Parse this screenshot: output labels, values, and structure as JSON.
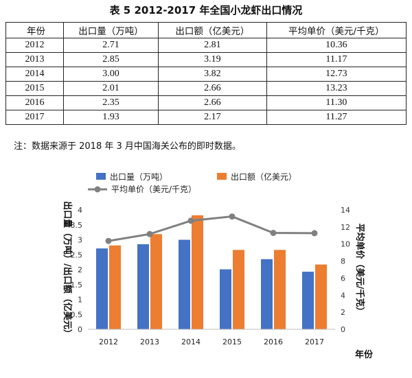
{
  "title": "表 5 2012-2017 年全国小龙虾出口情况",
  "table": {
    "headers": [
      "年份",
      "出口量（万吨）",
      "出口额（亿美元）",
      "平均单价（美元/千克）"
    ],
    "rows": [
      [
        "2012",
        "2.71",
        "2.81",
        "10.36"
      ],
      [
        "2013",
        "2.85",
        "3.19",
        "11.17"
      ],
      [
        "2014",
        "3.00",
        "3.82",
        "12.73"
      ],
      [
        "2015",
        "2.01",
        "2.66",
        "13.23"
      ],
      [
        "2016",
        "2.35",
        "2.66",
        "11.30"
      ],
      [
        "2017",
        "1.93",
        "2.17",
        "11.27"
      ]
    ]
  },
  "note": "注：数据来源于 2018 年 3 月中国海关公布的即时数据。",
  "chart_data": {
    "type": "bar",
    "categories": [
      "2012",
      "2013",
      "2014",
      "2015",
      "2016",
      "2017"
    ],
    "series": [
      {
        "name": "出口量（万吨）",
        "type": "bar",
        "axis": "left",
        "color": "#4472C4",
        "values": [
          2.71,
          2.85,
          3.0,
          2.01,
          2.35,
          1.93
        ]
      },
      {
        "name": "出口额（亿美元）",
        "type": "bar",
        "axis": "left",
        "color": "#ED7D31",
        "values": [
          2.81,
          3.19,
          3.82,
          2.66,
          2.66,
          2.17
        ]
      },
      {
        "name": "平均单价（美元/千克）",
        "type": "line",
        "axis": "right",
        "color": "#808080",
        "values": [
          10.36,
          11.17,
          12.73,
          13.23,
          11.3,
          11.27
        ]
      }
    ],
    "xlabel": "年份",
    "ylabel": "出口量（万吨）/出口额（亿美元）",
    "y2label": "平均单价（美元/千克）",
    "ylim": [
      0,
      4
    ],
    "y2lim": [
      0,
      14
    ],
    "yticks": [
      "0",
      "0.5",
      "1",
      "1.5",
      "2",
      "2.5",
      "3",
      "3.5",
      "4"
    ],
    "y2ticks": [
      "0",
      "2",
      "4",
      "6",
      "8",
      "10",
      "12",
      "14"
    ],
    "grid": false,
    "legend": "top"
  }
}
